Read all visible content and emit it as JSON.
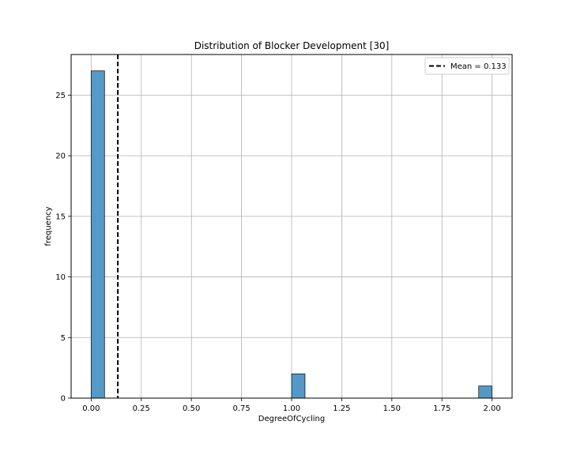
{
  "chart_data": {
    "type": "bar",
    "subtype": "histogram",
    "title": "Distribution of Blocker Development [30]",
    "xlabel": "DegreeOfCycling",
    "ylabel": "frequency",
    "xlim": [
      -0.1,
      2.1
    ],
    "ylim": [
      0,
      28.35
    ],
    "xticks": [
      0.0,
      0.25,
      0.5,
      0.75,
      1.0,
      1.25,
      1.5,
      1.75,
      2.0
    ],
    "xtick_labels": [
      "0.00",
      "0.25",
      "0.50",
      "0.75",
      "1.00",
      "1.25",
      "1.50",
      "1.75",
      "2.00"
    ],
    "yticks": [
      0,
      5,
      10,
      15,
      20,
      25
    ],
    "ytick_labels": [
      "0",
      "5",
      "10",
      "15",
      "20",
      "25"
    ],
    "bins": [
      {
        "x0": 0.0,
        "x1": 0.0667,
        "count": 27
      },
      {
        "x0": 1.0,
        "x1": 1.0667,
        "count": 2
      },
      {
        "x0": 1.9333,
        "x1": 2.0,
        "count": 1
      }
    ],
    "mean_line": {
      "x": 0.133,
      "label": "Mean = 0.133",
      "style": "dashed",
      "color": "#000000"
    },
    "grid": true,
    "legend": {
      "position": "top-right"
    },
    "colors": {
      "bar_fill": "#5499c7",
      "bar_edge": "#1a1a1a",
      "grid": "#b0b0b0"
    }
  }
}
